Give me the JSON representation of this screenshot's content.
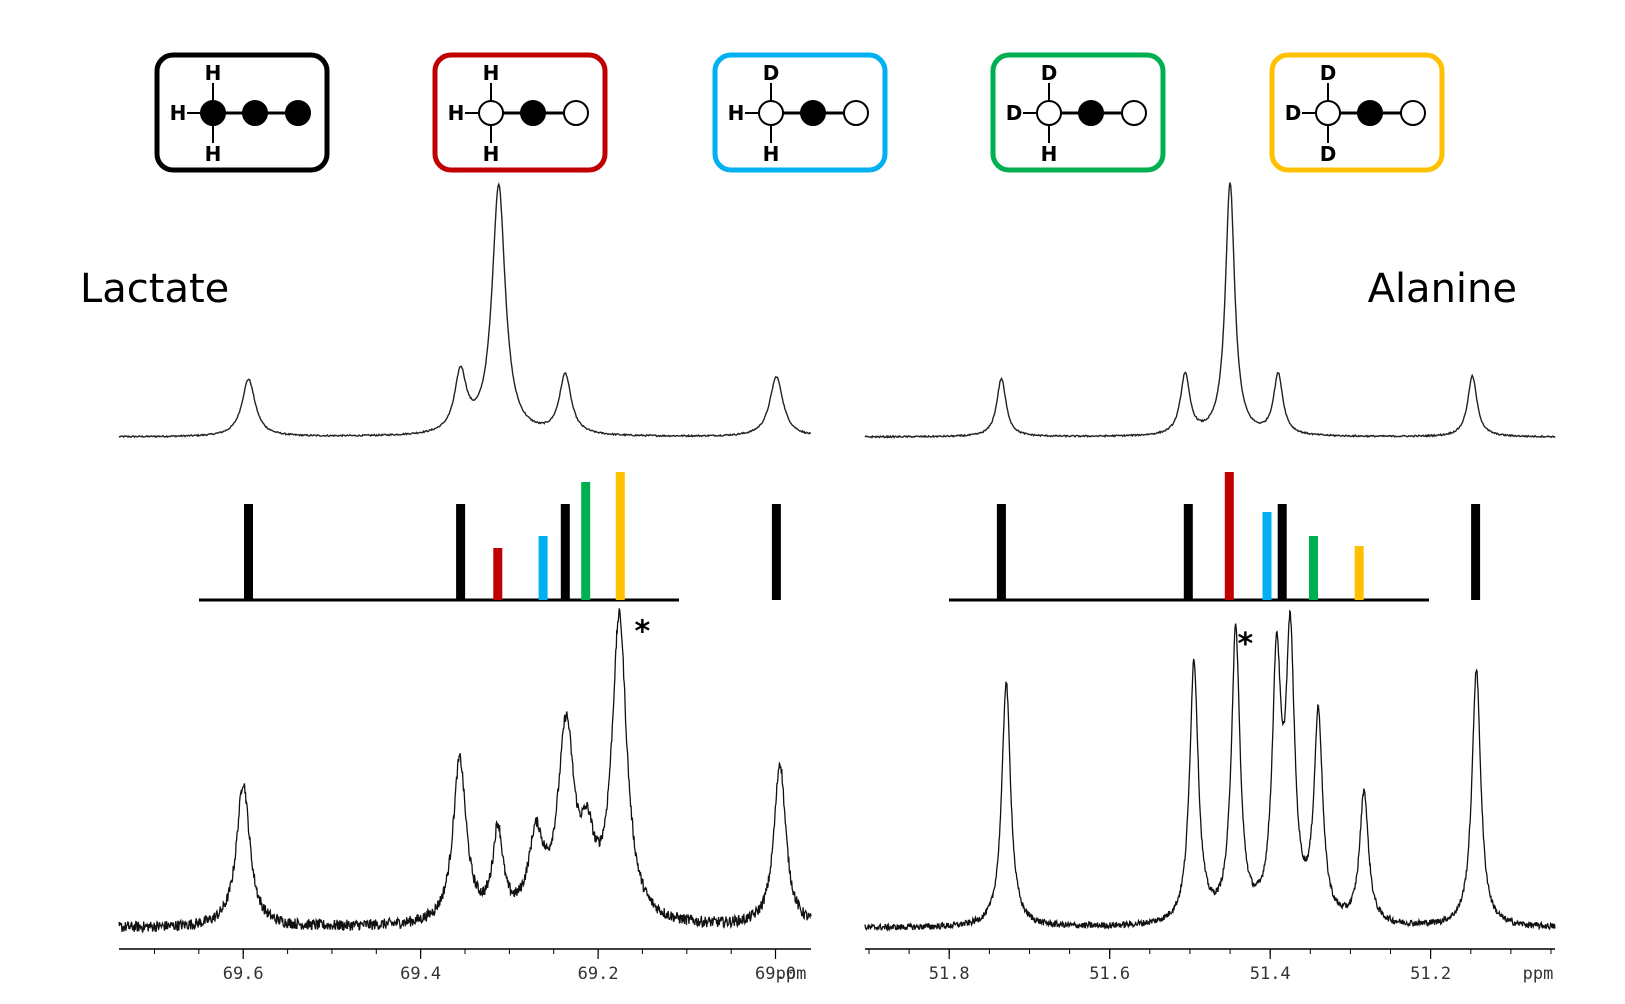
{
  "legend": [
    {
      "color": "#000000",
      "top": "H",
      "left": "H",
      "bottom": "H",
      "atoms": [
        "filled",
        "filled",
        "filled"
      ]
    },
    {
      "color": "#c00000",
      "top": "H",
      "left": "H",
      "bottom": "H",
      "atoms": [
        "open",
        "filled",
        "open"
      ]
    },
    {
      "color": "#00b0f0",
      "top": "D",
      "left": "H",
      "bottom": "H",
      "atoms": [
        "open",
        "filled",
        "open"
      ]
    },
    {
      "color": "#00b050",
      "top": "D",
      "left": "D",
      "bottom": "H",
      "atoms": [
        "open",
        "filled",
        "open"
      ]
    },
    {
      "color": "#ffc000",
      "top": "D",
      "left": "D",
      "bottom": "D",
      "atoms": [
        "open",
        "filled",
        "open"
      ]
    }
  ],
  "colors": {
    "black": "#000000",
    "red": "#c00000",
    "blue": "#00b0f0",
    "green": "#00b050",
    "yellow": "#ffc000"
  },
  "chart_data": [
    {
      "type": "line",
      "title": "Lactate",
      "xlabel": "ppm",
      "x_reversed": true,
      "xlim": [
        69.74,
        68.96
      ],
      "xticks": [
        "69.6",
        "69.4",
        "69.2",
        "69.0"
      ],
      "simulated_spectrum": {
        "peaks": [
          {
            "ppm": 69.594,
            "height": 0.23,
            "width": 0.009
          },
          {
            "ppm": 69.355,
            "height": 0.24,
            "width": 0.008
          },
          {
            "ppm": 69.312,
            "height": 1.0,
            "width": 0.009
          },
          {
            "ppm": 69.237,
            "height": 0.24,
            "width": 0.008
          },
          {
            "ppm": 68.999,
            "height": 0.24,
            "width": 0.009
          }
        ]
      },
      "stick_spectrum": [
        {
          "ppm": 69.594,
          "intensity": 0.48,
          "color": "black"
        },
        {
          "ppm": 69.355,
          "intensity": 0.48,
          "color": "black"
        },
        {
          "ppm": 69.313,
          "intensity": 0.26,
          "color": "red"
        },
        {
          "ppm": 69.262,
          "intensity": 0.32,
          "color": "blue"
        },
        {
          "ppm": 69.237,
          "intensity": 0.48,
          "color": "black"
        },
        {
          "ppm": 69.214,
          "intensity": 0.59,
          "color": "green"
        },
        {
          "ppm": 69.175,
          "intensity": 0.64,
          "color": "yellow"
        },
        {
          "ppm": 68.999,
          "intensity": 0.48,
          "color": "black"
        }
      ],
      "experimental_spectrum": {
        "noise": 0.035,
        "peaks": [
          {
            "ppm": 69.6,
            "height": 0.46,
            "width": 0.009
          },
          {
            "ppm": 69.356,
            "height": 0.52,
            "width": 0.009
          },
          {
            "ppm": 69.313,
            "height": 0.28,
            "width": 0.007
          },
          {
            "ppm": 69.27,
            "height": 0.25,
            "width": 0.01
          },
          {
            "ppm": 69.236,
            "height": 0.6,
            "width": 0.011
          },
          {
            "ppm": 69.212,
            "height": 0.2,
            "width": 0.009
          },
          {
            "ppm": 69.176,
            "height": 0.96,
            "width": 0.01
          },
          {
            "ppm": 68.995,
            "height": 0.52,
            "width": 0.008
          }
        ]
      },
      "marker": {
        "text": "*",
        "ppm": 69.15
      }
    },
    {
      "type": "line",
      "title": "Alanine",
      "xlabel": "ppm",
      "x_reversed": true,
      "xlim": [
        51.905,
        51.045
      ],
      "xticks": [
        "51.8",
        "51.6",
        "51.4",
        "51.2"
      ],
      "simulated_spectrum": {
        "peaks": [
          {
            "ppm": 51.735,
            "height": 0.23,
            "width": 0.007
          },
          {
            "ppm": 51.506,
            "height": 0.24,
            "width": 0.007
          },
          {
            "ppm": 51.45,
            "height": 1.0,
            "width": 0.007
          },
          {
            "ppm": 51.39,
            "height": 0.24,
            "width": 0.007
          },
          {
            "ppm": 51.148,
            "height": 0.24,
            "width": 0.007
          }
        ]
      },
      "stick_spectrum": [
        {
          "ppm": 51.735,
          "intensity": 0.48,
          "color": "black"
        },
        {
          "ppm": 51.502,
          "intensity": 0.48,
          "color": "black"
        },
        {
          "ppm": 51.451,
          "intensity": 0.64,
          "color": "red"
        },
        {
          "ppm": 51.404,
          "intensity": 0.44,
          "color": "blue"
        },
        {
          "ppm": 51.385,
          "intensity": 0.48,
          "color": "black"
        },
        {
          "ppm": 51.346,
          "intensity": 0.32,
          "color": "green"
        },
        {
          "ppm": 51.289,
          "intensity": 0.27,
          "color": "yellow"
        },
        {
          "ppm": 51.144,
          "intensity": 0.48,
          "color": "black"
        }
      ],
      "experimental_spectrum": {
        "noise": 0.02,
        "peaks": [
          {
            "ppm": 51.729,
            "height": 0.78,
            "width": 0.0065
          },
          {
            "ppm": 51.495,
            "height": 0.83,
            "width": 0.0065
          },
          {
            "ppm": 51.443,
            "height": 0.92,
            "width": 0.0065
          },
          {
            "ppm": 51.392,
            "height": 0.8,
            "width": 0.0065
          },
          {
            "ppm": 51.375,
            "height": 0.86,
            "width": 0.0065
          },
          {
            "ppm": 51.34,
            "height": 0.65,
            "width": 0.0065
          },
          {
            "ppm": 51.283,
            "height": 0.42,
            "width": 0.0065
          },
          {
            "ppm": 51.143,
            "height": 0.82,
            "width": 0.0065
          }
        ]
      },
      "marker": {
        "text": "*",
        "ppm": 51.431
      }
    }
  ]
}
